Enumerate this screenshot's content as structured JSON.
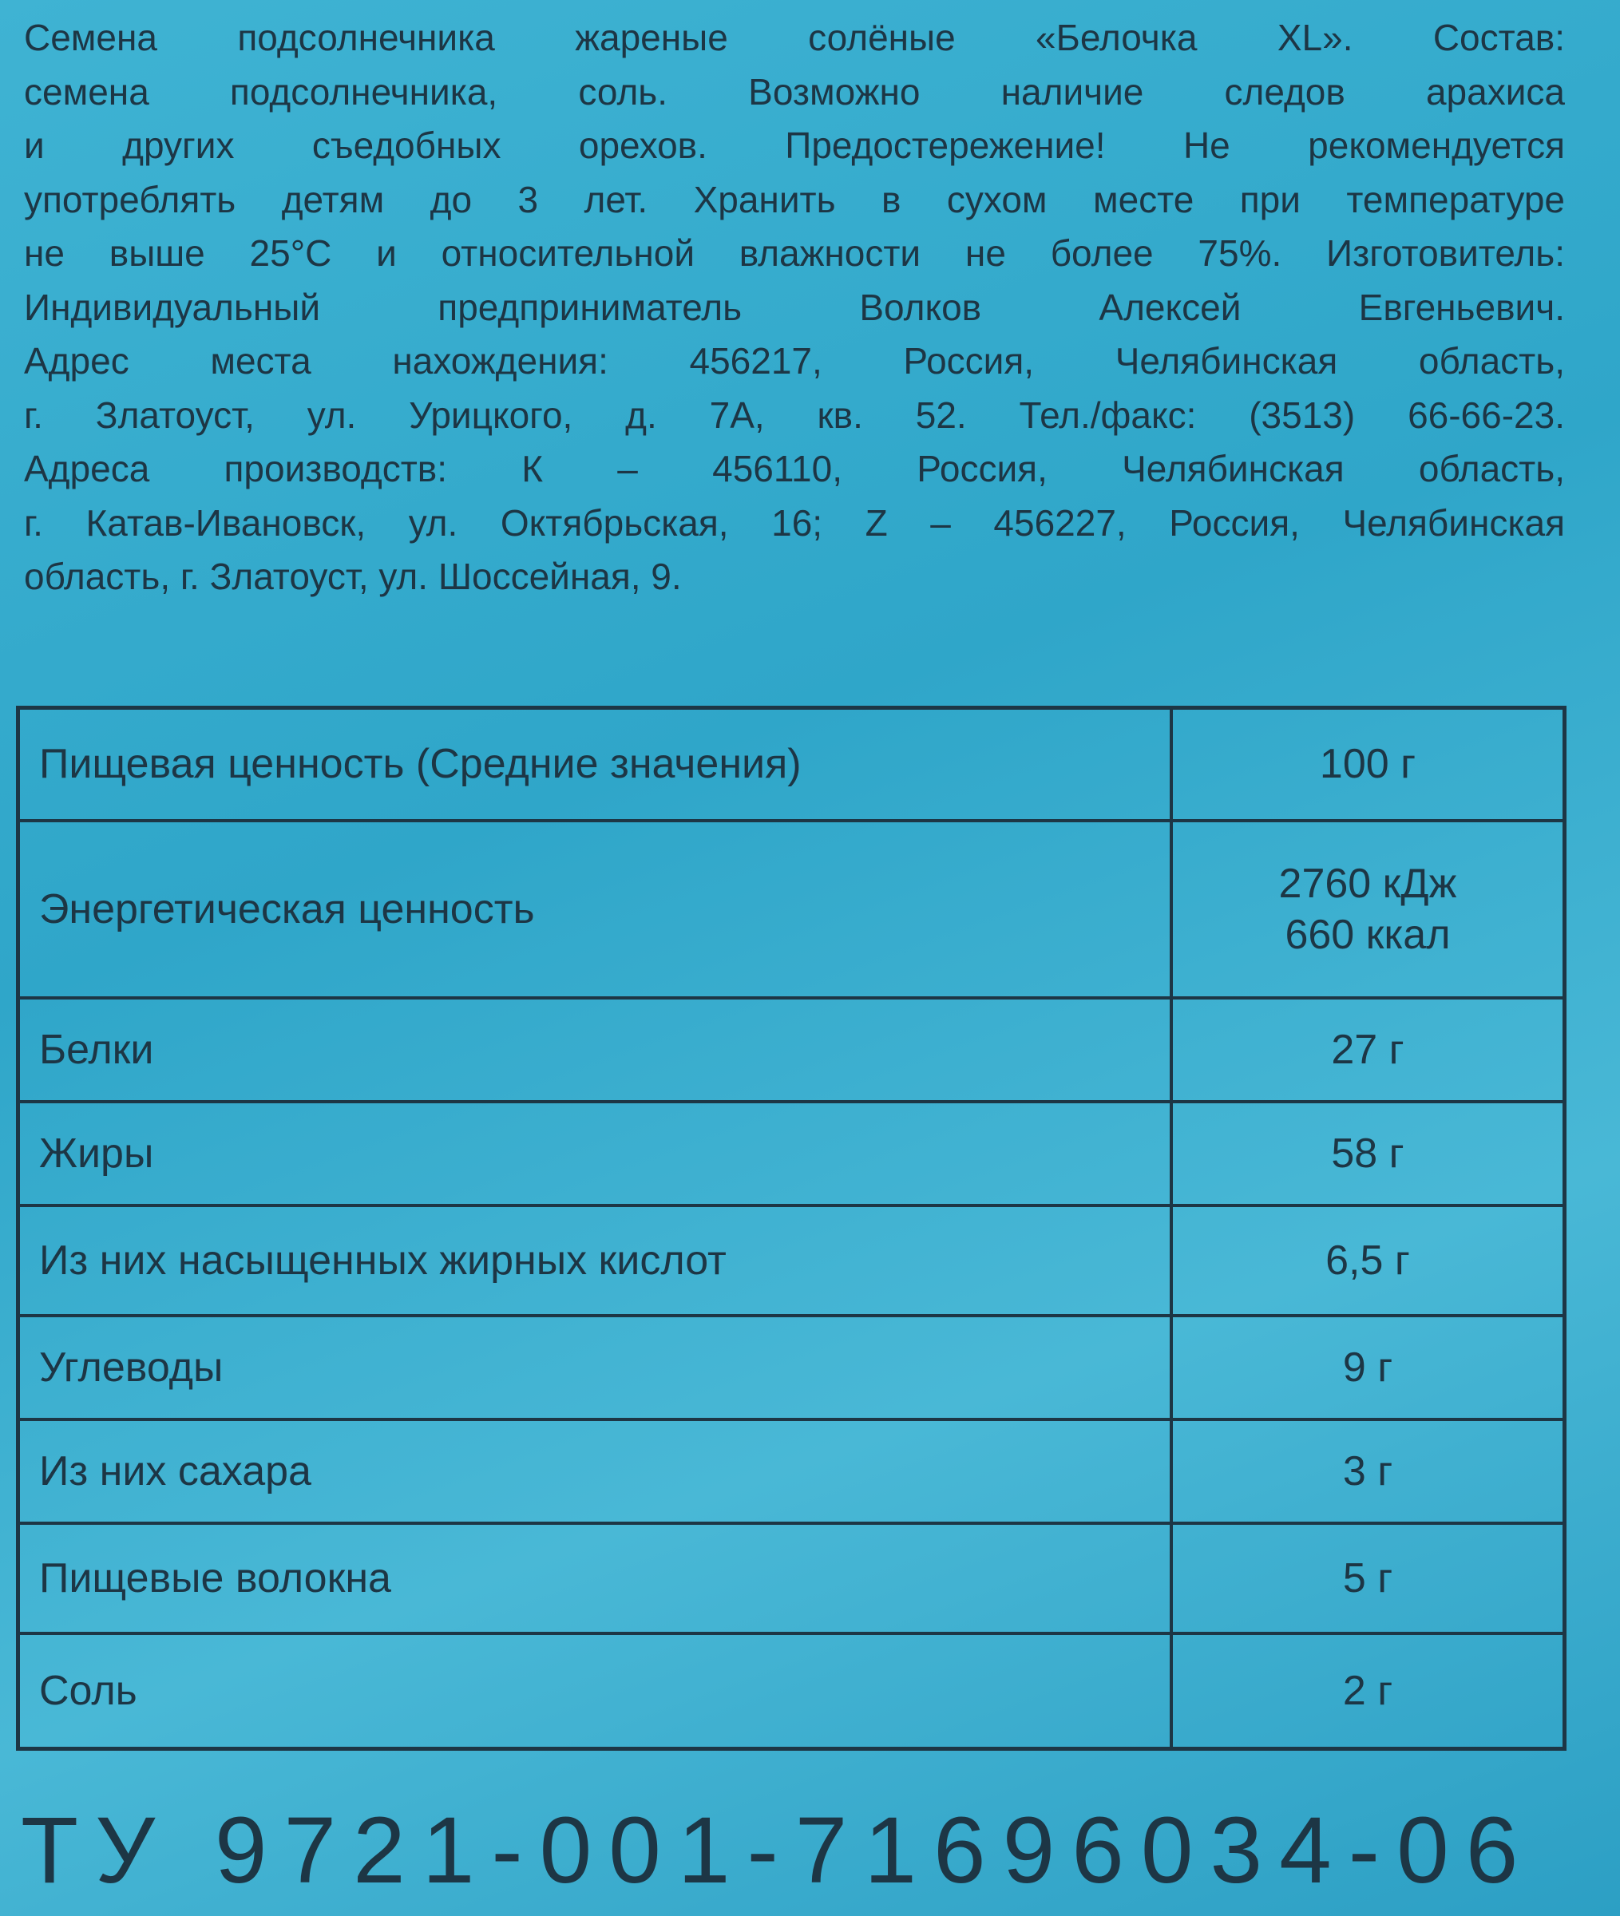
{
  "description": {
    "lines": [
      "Семена подсолнечника жареные солёные «Белочка XL». Состав:",
      "семена подсолнечника, соль. Возможно наличие следов арахиса",
      "и других съедобных орехов. Предостережение! Не рекомендуется",
      "употреблять детям до 3 лет. Хранить в сухом месте при температуре",
      "не выше 25°С и относительной влажности не более 75%. Изготовитель:",
      "Индивидуальный предприниматель Волков Алексей Евгеньевич.",
      "Адрес места нахождения: 456217, Россия, Челябинская область,",
      "г. Златоуст, ул. Урицкого, д. 7А, кв. 52. Тел./факс: (3513) 66-66-23.",
      "Адреса производств: К – 456110, Россия, Челябинская область,",
      "г. Катав-Ивановск, ул. Октябрьская, 16; Z – 456227, Россия, Челябинская",
      "область, г. Златоуст, ул. Шоссейная, 9."
    ]
  },
  "table": {
    "rows": [
      [
        "Пищевая ценность (Средние значения)",
        [
          "100 г"
        ]
      ],
      [
        "Энергетическая ценность",
        [
          "2760 кДж",
          "660 ккал"
        ]
      ],
      [
        "Белки",
        [
          "27 г"
        ]
      ],
      [
        "Жиры",
        [
          "58 г"
        ]
      ],
      [
        "Из них насыщенных жирных кислот",
        [
          "6,5 г"
        ]
      ],
      [
        "Углеводы",
        [
          "9 г"
        ]
      ],
      [
        "Из них сахара",
        [
          "3 г"
        ]
      ],
      [
        "Пищевые волокна",
        [
          "5 г"
        ]
      ],
      [
        "Соль",
        [
          "2 г"
        ]
      ]
    ]
  },
  "footer": "ТУ 9721-001-71696034-06"
}
